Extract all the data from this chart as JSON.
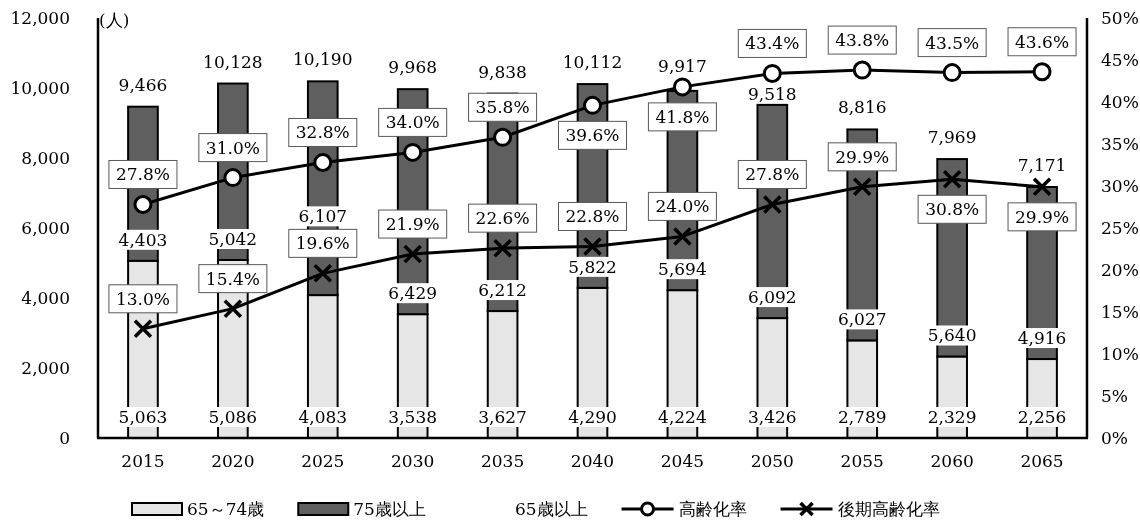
{
  "chart_data": {
    "type": "bar",
    "stacked": true,
    "ylabel": "(人)",
    "categories": [
      "2015",
      "2020",
      "2025",
      "2030",
      "2035",
      "2040",
      "2045",
      "2050",
      "2055",
      "2060",
      "2065"
    ],
    "series": [
      {
        "name": "65～74歳",
        "color": "#e6e6e6",
        "values": [
          5063,
          5086,
          4083,
          3538,
          3627,
          4290,
          4224,
          3426,
          2789,
          2329,
          2256
        ],
        "value_labels": [
          "5,063",
          "5,086",
          "4,083",
          "3,538",
          "3,627",
          "4,290",
          "4,224",
          "3,426",
          "2,789",
          "2,329",
          "2,256"
        ]
      },
      {
        "name": "75歳以上",
        "color": "#5f5f5f",
        "values": [
          4403,
          5042,
          6107,
          6429,
          6212,
          5822,
          5694,
          6092,
          6027,
          5640,
          4916
        ],
        "value_labels": [
          "4,403",
          "5,042",
          "6,107",
          "6,429",
          "6,212",
          "5,822",
          "5,694",
          "6,092",
          "6,027",
          "5,640",
          "4,916"
        ]
      },
      {
        "name": "高齢化率",
        "type": "line",
        "axis": "y2",
        "color": "#000000",
        "marker": "circle",
        "line_style": "solid",
        "values": [
          27.8,
          31.0,
          32.8,
          34.0,
          35.8,
          39.6,
          41.8,
          43.4,
          43.8,
          43.5,
          43.6
        ],
        "value_labels": [
          "27.8%",
          "31.0%",
          "32.8%",
          "34.0%",
          "35.8%",
          "39.6%",
          "41.8%",
          "43.4%",
          "43.8%",
          "43.5%",
          "43.6%"
        ]
      },
      {
        "name": "後期高齢化率",
        "type": "line",
        "axis": "y2",
        "color": "#000000",
        "marker": "cross",
        "line_style": "solid",
        "values": [
          13.0,
          15.4,
          19.6,
          21.9,
          22.6,
          22.8,
          24.0,
          27.8,
          29.9,
          30.8,
          29.9
        ],
        "value_labels": [
          "13.0%",
          "15.4%",
          "19.6%",
          "21.9%",
          "22.6%",
          "22.8%",
          "24.0%",
          "27.8%",
          "29.9%",
          "30.8%",
          "29.9%"
        ]
      }
    ],
    "totals": [
      "9,466",
      "10,128",
      "10,190",
      "9,968",
      "9,838",
      "10,112",
      "9,917",
      "9,518",
      "8,816",
      "7,969",
      "7,171"
    ],
    "ylim": [
      0,
      12000
    ],
    "yticks": [
      0,
      {
        "value": 2000,
        "label": "2,000"
      },
      {
        "value": 4000,
        "label": "4,000"
      },
      {
        "value": 6000,
        "label": "6,000"
      },
      {
        "value": 8000,
        "label": "8,000"
      },
      {
        "value": 10000,
        "label": "10,000"
      },
      {
        "value": 12000,
        "label": "12,000"
      }
    ],
    "y2lim": [
      0,
      50
    ],
    "y2ticks": [
      {
        "value": 0,
        "label": "0%"
      },
      {
        "value": 5,
        "label": "5%"
      },
      {
        "value": 10,
        "label": "10%"
      },
      {
        "value": 15,
        "label": "15%"
      },
      {
        "value": 20,
        "label": "20%"
      },
      {
        "value": 25,
        "label": "25%"
      },
      {
        "value": 30,
        "label": "30%"
      },
      {
        "value": 35,
        "label": "35%"
      },
      {
        "value": 40,
        "label": "40%"
      },
      {
        "value": 45,
        "label": "45%"
      },
      {
        "value": 50,
        "label": "50%"
      }
    ],
    "legend": "bottom",
    "annotations": [
      "65歳以上"
    ]
  }
}
